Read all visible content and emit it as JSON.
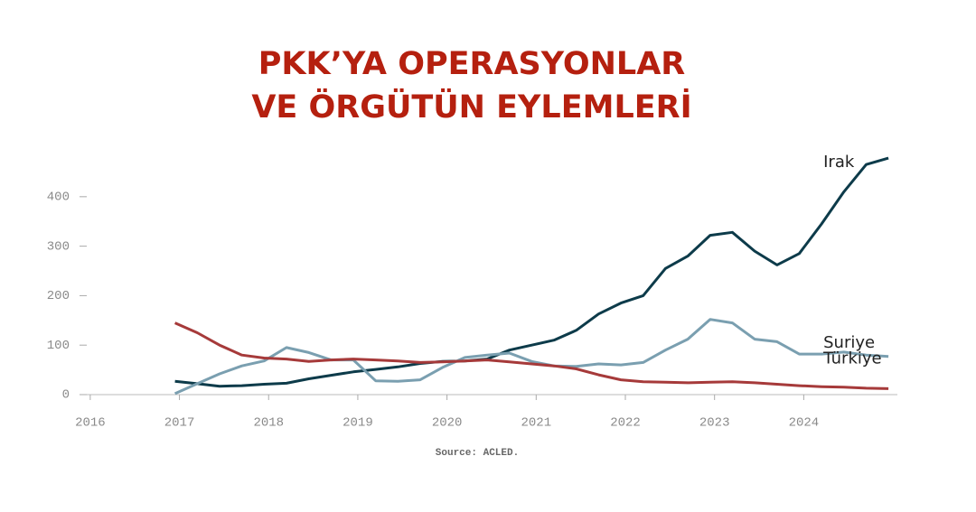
{
  "chart_data": {
    "type": "line",
    "title_lines": [
      "PKK’YA OPERASYONLAR",
      "VE ÖRGÜTÜN EYLEMLERİ"
    ],
    "source": "Source: ACLED.",
    "x": [
      2016.95,
      2017.2,
      2017.45,
      2017.7,
      2017.95,
      2018.2,
      2018.45,
      2018.7,
      2018.95,
      2019.2,
      2019.45,
      2019.7,
      2019.95,
      2020.2,
      2020.45,
      2020.7,
      2020.95,
      2021.2,
      2021.45,
      2021.7,
      2021.95,
      2022.2,
      2022.45,
      2022.7,
      2022.95,
      2023.2,
      2023.45,
      2023.7,
      2023.95,
      2024.2,
      2024.45,
      2024.7,
      2024.95
    ],
    "series": [
      {
        "name": "Irak",
        "color": "#0d3b4a",
        "values": [
          27,
          22,
          17,
          18,
          21,
          23,
          32,
          39,
          46,
          51,
          56,
          63,
          67,
          68,
          72,
          90,
          100,
          110,
          130,
          163,
          185,
          200,
          255,
          280,
          322,
          328,
          290,
          262,
          285,
          345,
          410,
          465,
          478
        ]
      },
      {
        "name": "Suriye",
        "color": "#7a9fb0",
        "values": [
          2,
          22,
          42,
          58,
          68,
          95,
          85,
          70,
          70,
          28,
          27,
          30,
          55,
          75,
          80,
          84,
          67,
          58,
          57,
          62,
          60,
          65,
          90,
          112,
          152,
          145,
          112,
          107,
          82,
          82,
          86,
          80,
          77
        ]
      },
      {
        "name": "Türkiye",
        "color": "#a63a3a",
        "values": [
          145,
          125,
          100,
          80,
          74,
          72,
          67,
          70,
          72,
          70,
          68,
          65,
          66,
          68,
          70,
          66,
          62,
          58,
          52,
          40,
          30,
          26,
          25,
          24,
          25,
          26,
          24,
          21,
          18,
          16,
          15,
          13,
          12
        ]
      }
    ],
    "xlim": [
      2015.9,
      2025.05
    ],
    "xticks": [
      2016,
      2017,
      2018,
      2019,
      2020,
      2021,
      2022,
      2023,
      2024
    ],
    "ylim": [
      0,
      480
    ],
    "yticks": [
      0,
      100,
      200,
      300,
      400
    ],
    "grid": false
  }
}
